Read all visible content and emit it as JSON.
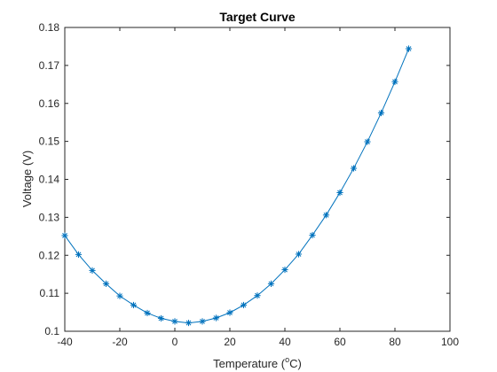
{
  "chart_data": {
    "type": "line",
    "title": "Target Curve",
    "xlabel": {
      "pre": "Temperature (",
      "sup": "o",
      "post": "C)"
    },
    "ylabel": "Voltage (V)",
    "xlim": [
      -40,
      100
    ],
    "ylim": [
      0.1,
      0.18
    ],
    "xticks": [
      -40,
      -20,
      0,
      20,
      40,
      60,
      80,
      100
    ],
    "yticks": [
      0.1,
      0.11,
      0.12,
      0.13,
      0.14,
      0.15,
      0.16,
      0.17,
      0.18
    ],
    "xtick_labels": [
      "-40",
      "-20",
      "0",
      "20",
      "40",
      "60",
      "80",
      "100"
    ],
    "ytick_labels": [
      "0.1",
      "0.11",
      "0.12",
      "0.13",
      "0.14",
      "0.15",
      "0.16",
      "0.17",
      "0.18"
    ],
    "grid": false,
    "series": [
      {
        "marker": "asterisk",
        "color": "#0072bd",
        "x": [
          -40,
          -35,
          -30,
          -25,
          -20,
          -15,
          -10,
          -5,
          0,
          5,
          10,
          15,
          20,
          25,
          30,
          35,
          40,
          45,
          50,
          55,
          60,
          65,
          70,
          75,
          80,
          85
        ],
        "y": [
          0.1252,
          0.1202,
          0.116,
          0.1125,
          0.1093,
          0.1069,
          0.1048,
          0.1034,
          0.1026,
          0.1022,
          0.1026,
          0.1035,
          0.1049,
          0.1069,
          0.1094,
          0.1125,
          0.1162,
          0.1203,
          0.1253,
          0.1306,
          0.1365,
          0.1429,
          0.1499,
          0.1575,
          0.1657,
          0.1744
        ]
      }
    ]
  }
}
